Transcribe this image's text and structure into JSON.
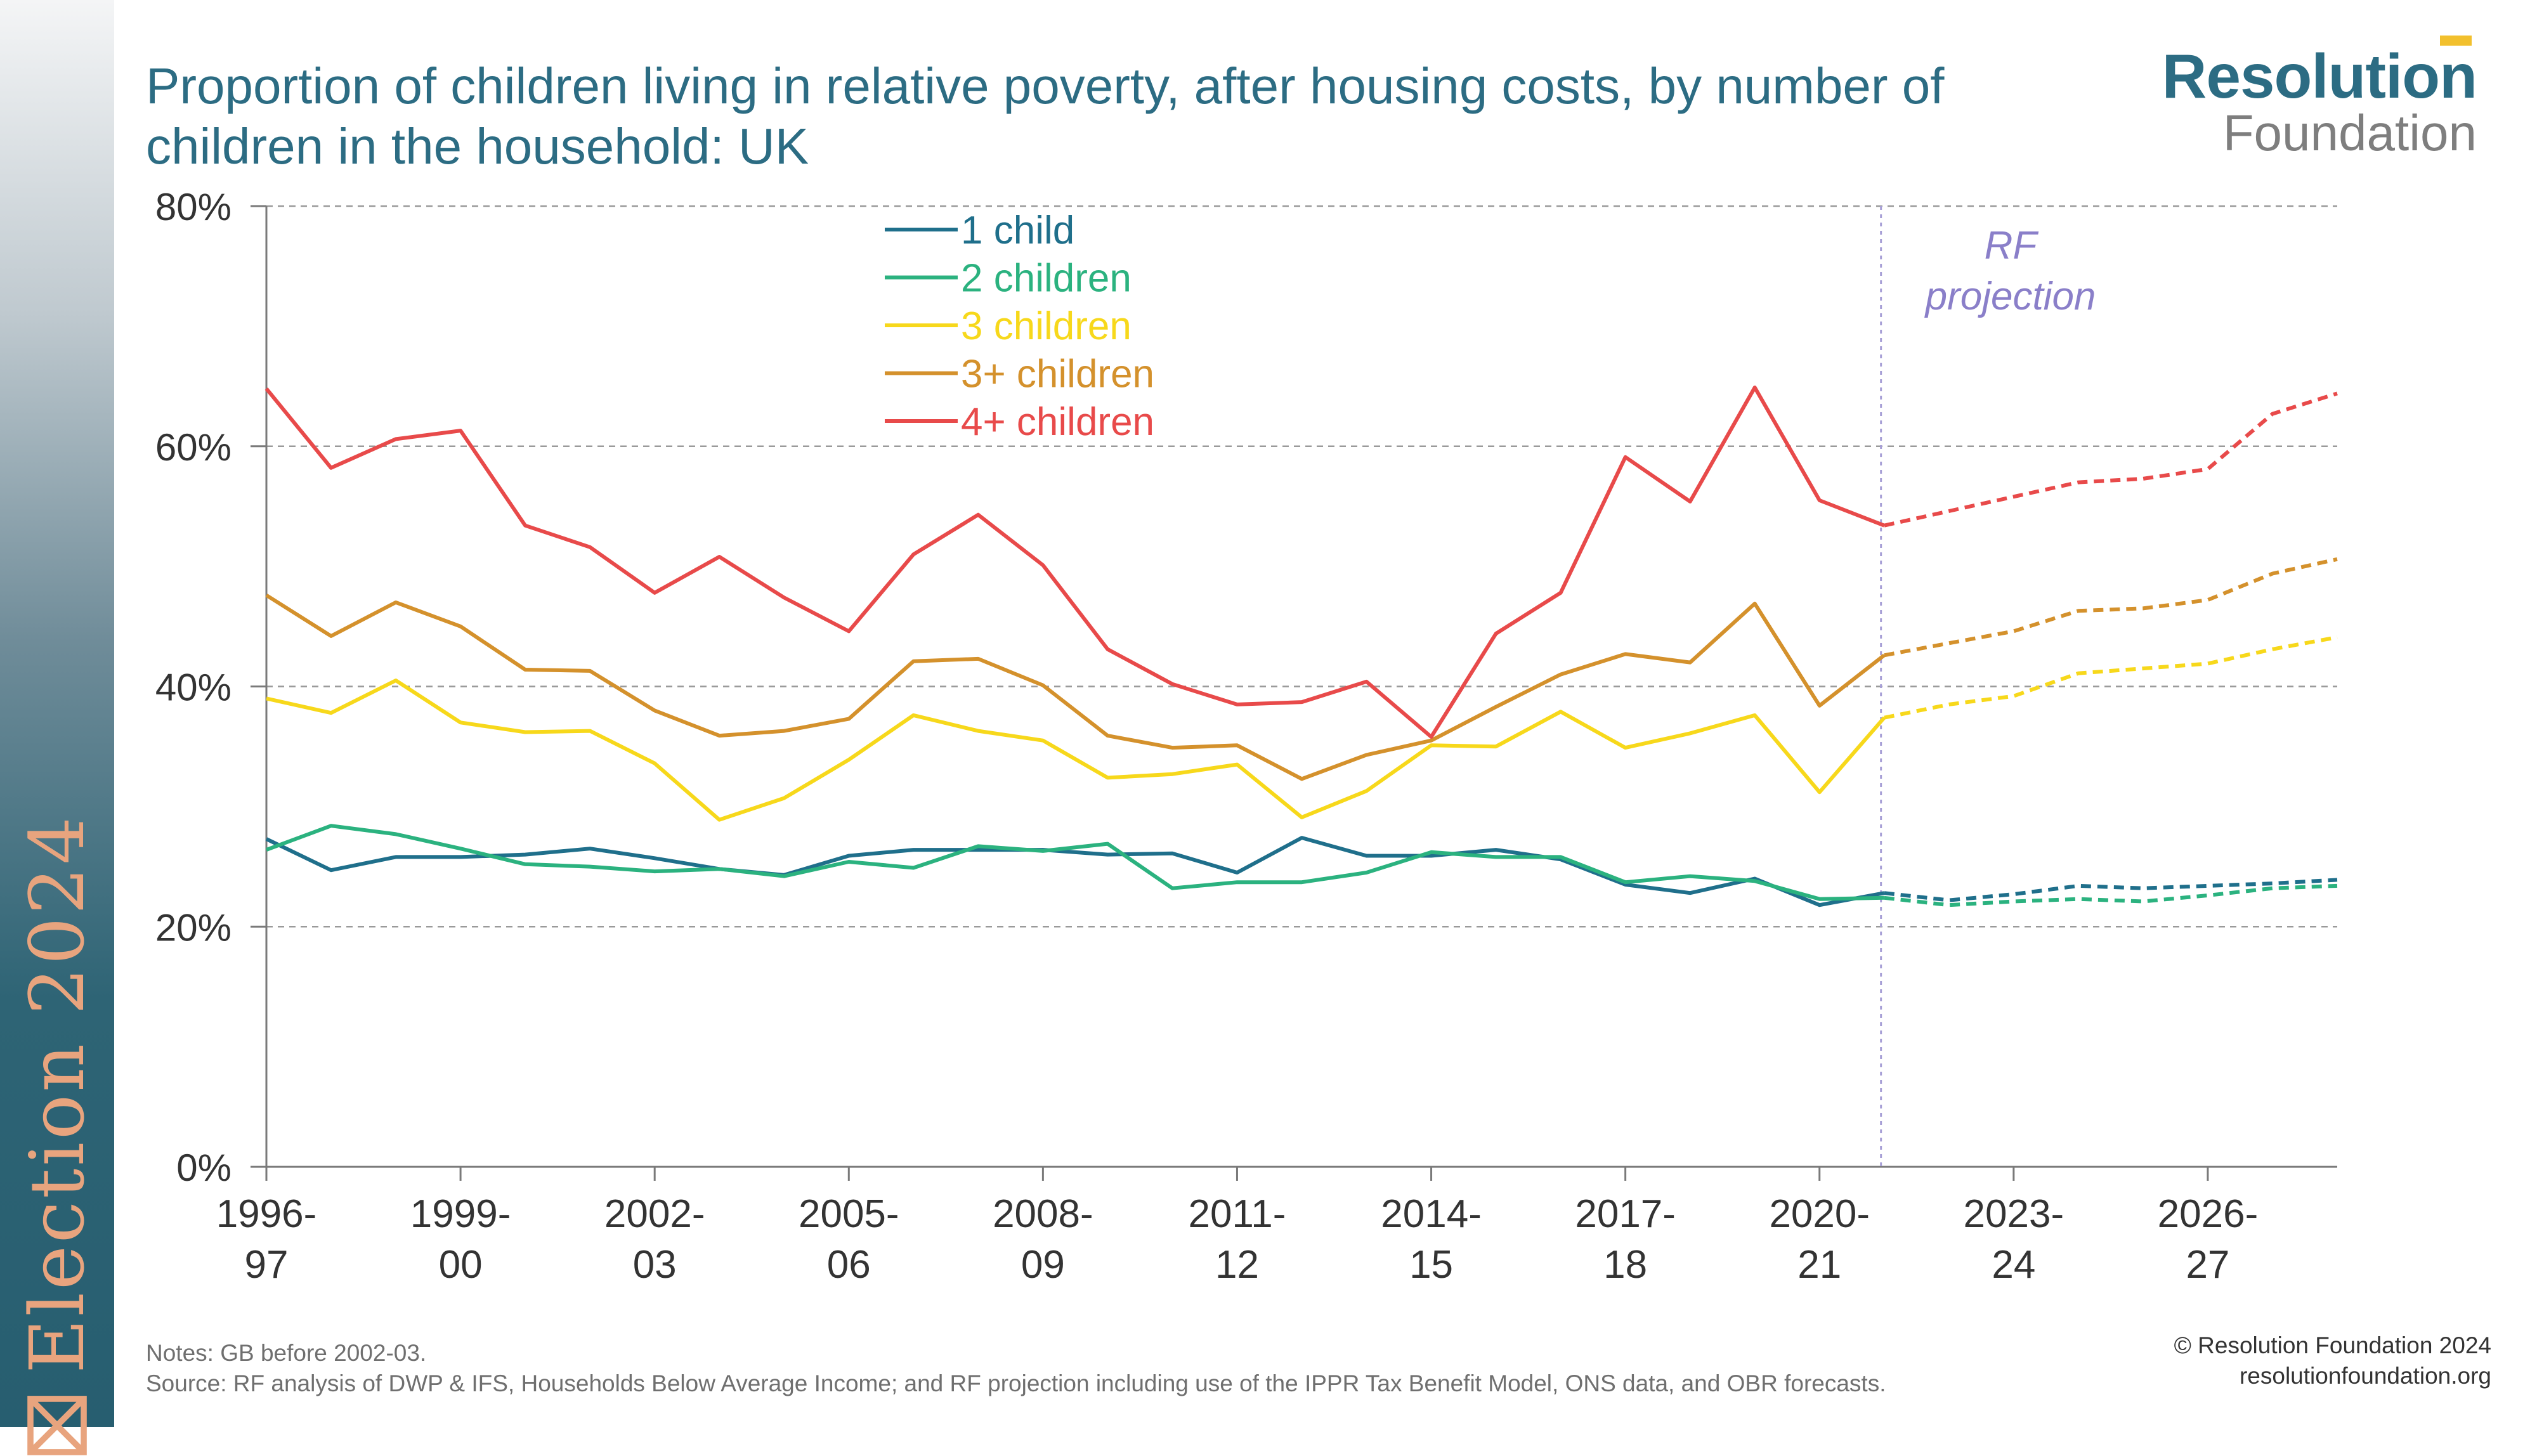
{
  "sidebar": {
    "label": "Election 2024",
    "icon": "ballot-box-icon",
    "label_color": "#e8a47e"
  },
  "header": {
    "title": "Proportion of children living in relative poverty, after housing costs, by number of children in the household: UK"
  },
  "logo": {
    "name": "Resolution",
    "sub": "Foundation",
    "accent_color": "#f2c02d"
  },
  "chart_data": {
    "type": "line",
    "categories": [
      "1996-97",
      "1997-98",
      "1998-99",
      "1999-00",
      "2000-01",
      "2001-02",
      "2002-03",
      "2003-04",
      "2004-05",
      "2005-06",
      "2006-07",
      "2007-08",
      "2008-09",
      "2009-10",
      "2010-11",
      "2011-12",
      "2012-13",
      "2013-14",
      "2014-15",
      "2015-16",
      "2016-17",
      "2017-18",
      "2018-19",
      "2019-20",
      "2020-21",
      "2021-22",
      "2022-23",
      "2023-24",
      "2024-25",
      "2025-26",
      "2026-27",
      "2027-28",
      "2028-29"
    ],
    "tick_labels": [
      {
        "index": 0,
        "line1": "1996-",
        "line2": "97"
      },
      {
        "index": 3,
        "line1": "1999-",
        "line2": "00"
      },
      {
        "index": 6,
        "line1": "2002-",
        "line2": "03"
      },
      {
        "index": 9,
        "line1": "2005-",
        "line2": "06"
      },
      {
        "index": 12,
        "line1": "2008-",
        "line2": "09"
      },
      {
        "index": 15,
        "line1": "2011-",
        "line2": "12"
      },
      {
        "index": 18,
        "line1": "2014-",
        "line2": "15"
      },
      {
        "index": 21,
        "line1": "2017-",
        "line2": "18"
      },
      {
        "index": 24,
        "line1": "2020-",
        "line2": "21"
      },
      {
        "index": 27,
        "line1": "2023-",
        "line2": "24"
      },
      {
        "index": 30,
        "line1": "2026-",
        "line2": "27"
      }
    ],
    "y_ticks": [
      0,
      20,
      40,
      60,
      80
    ],
    "y_tick_labels": [
      "0%",
      "20%",
      "40%",
      "60%",
      "80%"
    ],
    "ylim": [
      0,
      80
    ],
    "grid": "horizontal dashed",
    "legend_position": "top-left",
    "projection_start_index": 25,
    "projection_label": [
      "RF",
      "projection"
    ],
    "projection_color": "#8a7fc9",
    "series": [
      {
        "name": "1 child",
        "color": "#1f6f8b",
        "values": [
          27.3,
          24.7,
          25.8,
          25.8,
          26.0,
          26.5,
          25.7,
          24.8,
          24.3,
          25.9,
          26.4,
          26.4,
          26.4,
          26.0,
          26.1,
          24.5,
          27.4,
          25.9,
          25.9,
          26.4,
          25.6,
          23.5,
          22.8,
          24.0,
          21.8,
          22.8,
          22.2,
          22.7,
          23.4,
          23.2,
          23.4,
          23.6,
          23.9
        ]
      },
      {
        "name": "2 children",
        "color": "#2bb27f",
        "values": [
          26.4,
          28.4,
          27.7,
          26.5,
          25.2,
          25.0,
          24.6,
          24.8,
          24.2,
          25.4,
          24.9,
          26.7,
          26.3,
          26.9,
          23.2,
          23.7,
          23.7,
          24.5,
          26.2,
          25.8,
          25.8,
          23.7,
          24.2,
          23.8,
          22.3,
          22.4,
          21.8,
          22.1,
          22.3,
          22.1,
          22.6,
          23.2,
          23.4
        ]
      },
      {
        "name": "3 children",
        "color": "#f7d81b",
        "values": [
          39.0,
          37.8,
          40.5,
          37.0,
          36.2,
          36.3,
          33.6,
          28.9,
          30.7,
          33.9,
          37.6,
          36.3,
          35.5,
          32.4,
          32.7,
          33.5,
          29.1,
          31.3,
          35.1,
          35.0,
          37.9,
          34.9,
          36.1,
          37.6,
          31.2,
          37.4,
          38.5,
          39.2,
          41.1,
          41.5,
          41.9,
          43.1,
          44.1
        ]
      },
      {
        "name": "3+ children",
        "color": "#d4912c",
        "values": [
          47.6,
          44.2,
          47.0,
          45.0,
          41.4,
          41.3,
          38.0,
          35.9,
          36.3,
          37.3,
          42.1,
          42.3,
          40.1,
          35.9,
          34.9,
          35.1,
          32.3,
          34.3,
          35.5,
          38.3,
          41.0,
          42.7,
          42.0,
          46.9,
          38.4,
          42.6,
          43.6,
          44.6,
          46.3,
          46.5,
          47.2,
          49.4,
          50.6
        ]
      },
      {
        "name": "4+ children",
        "color": "#e84a4a",
        "values": [
          64.8,
          58.2,
          60.6,
          61.3,
          53.4,
          51.6,
          47.8,
          50.8,
          47.4,
          44.6,
          51.0,
          54.3,
          50.1,
          43.1,
          40.2,
          38.5,
          38.7,
          40.4,
          35.8,
          44.4,
          47.8,
          59.1,
          55.4,
          64.9,
          55.5,
          53.4,
          54.6,
          55.8,
          57.0,
          57.3,
          58.1,
          62.7,
          64.4
        ]
      }
    ]
  },
  "footer": {
    "notes": "Notes: GB before 2002-03.",
    "source": "Source: RF analysis of DWP & IFS, Households Below Average Income; and RF projection including use of the IPPR Tax Benefit Model, ONS data, and OBR forecasts.",
    "copyright": "© Resolution Foundation 2024",
    "website": "resolutionfoundation.org"
  }
}
